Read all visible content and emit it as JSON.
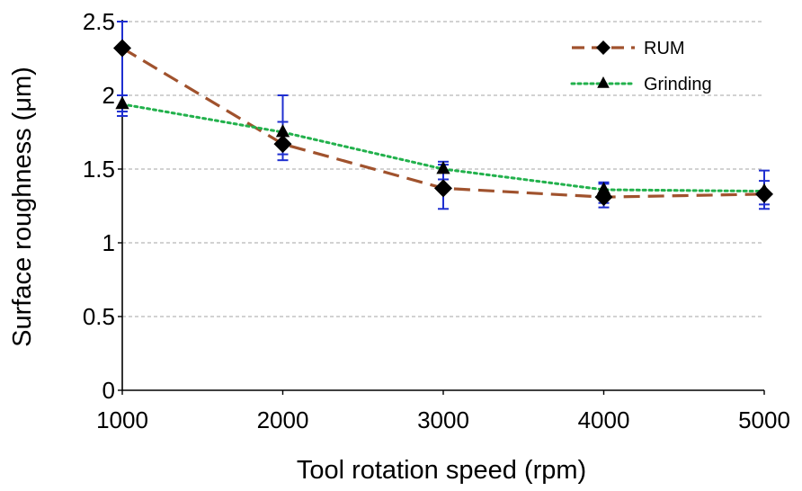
{
  "chart_data": {
    "type": "line",
    "xlabel": "Tool rotation speed (rpm)",
    "ylabel": "Surface roughness (μm)",
    "x": [
      1000,
      2000,
      3000,
      4000,
      5000
    ],
    "xlim": [
      1000,
      5000
    ],
    "ylim": [
      0,
      2.5
    ],
    "xticks": [
      "1000",
      "2000",
      "3000",
      "4000",
      "5000"
    ],
    "yticks": [
      "0",
      "0.5",
      "1",
      "1.5",
      "2",
      "2.5"
    ],
    "grid": "horizontal dashed",
    "legend_position": "top-right",
    "series": [
      {
        "name": "RUM",
        "values": [
          2.32,
          1.67,
          1.37,
          1.31,
          1.33
        ],
        "error_low": [
          1.86,
          1.56,
          1.23,
          1.24,
          1.23
        ],
        "error_high": [
          2.5,
          1.82,
          1.53,
          1.4,
          1.49
        ],
        "line_style": "dashed",
        "color": "#a0522d",
        "marker": "diamond"
      },
      {
        "name": "Grinding",
        "values": [
          1.94,
          1.75,
          1.5,
          1.36,
          1.35
        ],
        "error_low": [
          1.89,
          1.6,
          1.43,
          1.27,
          1.26
        ],
        "error_high": [
          2.0,
          2.0,
          1.55,
          1.41,
          1.42
        ],
        "line_style": "dotted",
        "color": "#22b14c",
        "marker": "triangle"
      }
    ],
    "error_bar_color": "#1f2fd0",
    "marker_color": "#000000"
  }
}
